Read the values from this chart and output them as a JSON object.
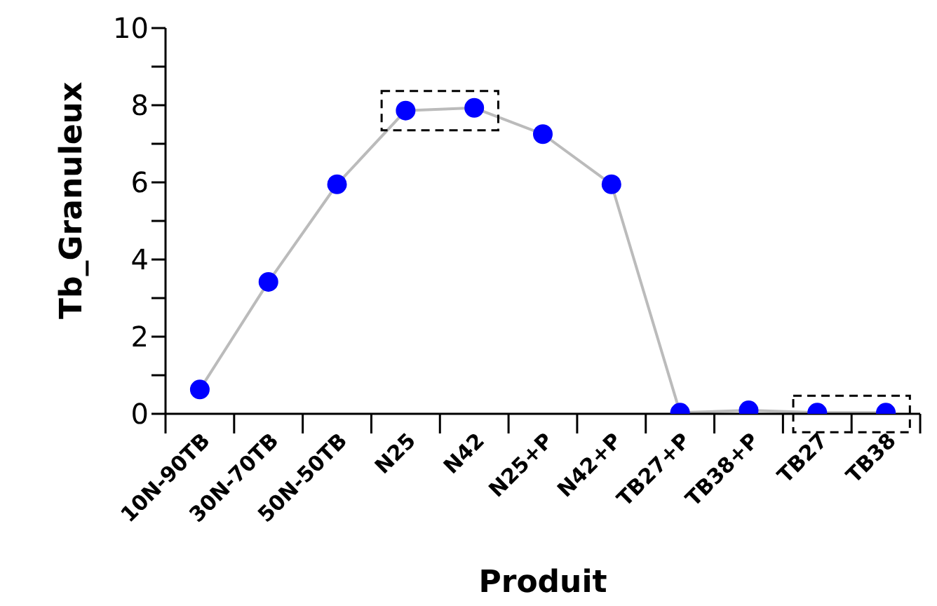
{
  "chart_data": {
    "type": "line",
    "xlabel": "Produit",
    "ylabel": "Tb_Granuleux",
    "categories": [
      "10N-90TB",
      "30N-70TB",
      "50N-50TB",
      "N25",
      "N42",
      "N25+P",
      "N42+P",
      "TB27+P",
      "TB38+P",
      "TB27",
      "TB38"
    ],
    "series": [
      {
        "color": "#0000ff",
        "values": [
          0.63,
          3.42,
          5.95,
          7.86,
          7.93,
          7.25,
          5.95,
          0.03,
          0.09,
          0.03,
          0.03
        ]
      }
    ],
    "ylim": [
      0,
      10
    ],
    "yticks": [
      0,
      {
        "value": 1,
        "label": null
      },
      2,
      {
        "value": 3,
        "label": null
      },
      4,
      {
        "value": 5,
        "label": null
      },
      6,
      {
        "value": 7,
        "label": null
      },
      8,
      {
        "value": 9,
        "label": null
      },
      10
    ],
    "marker": "circle",
    "line_style": "solid",
    "grid": false,
    "legend": false
  }
}
